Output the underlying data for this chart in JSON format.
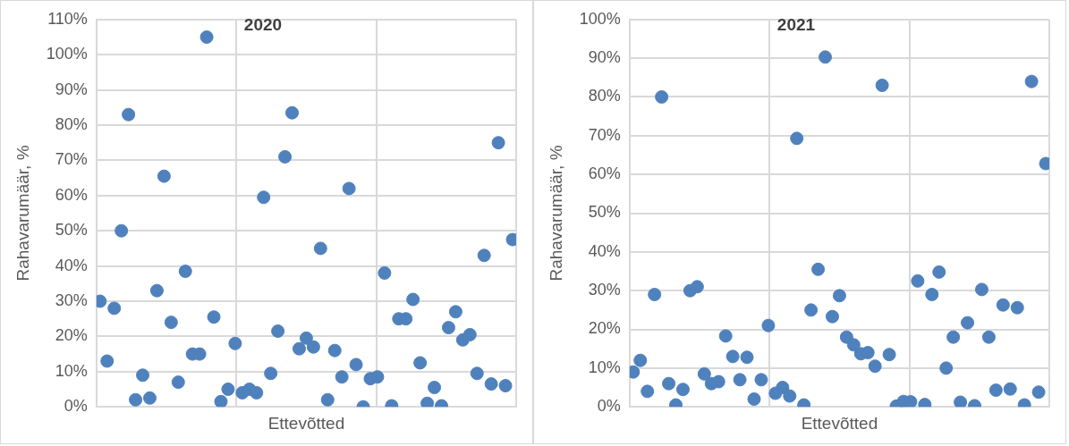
{
  "chart_data": [
    {
      "type": "scatter",
      "title": "2020",
      "xlabel": "Ettevõtted",
      "ylabel": "Rahavarumäär, %",
      "marker": "circle",
      "grid": true,
      "legend": false,
      "tick_labels": "y",
      "categories": [
        null,
        null,
        null,
        null,
        null,
        null,
        null,
        null,
        null,
        null,
        null,
        null,
        null,
        null,
        null,
        null,
        null,
        null,
        null,
        null,
        null,
        null,
        null,
        null,
        null,
        null,
        null,
        null,
        null,
        null,
        null,
        null,
        null,
        null,
        null,
        null,
        null,
        null,
        null,
        null,
        null,
        null,
        null,
        null,
        null,
        null,
        null,
        null,
        null,
        null,
        null,
        null,
        null,
        null,
        null,
        null,
        null,
        null,
        null
      ],
      "ylim": [
        0,
        110
      ],
      "yticks": [
        {
          "value": 0,
          "label": "0%"
        },
        {
          "value": 10,
          "label": "10%"
        },
        {
          "value": 20,
          "label": "20%"
        },
        {
          "value": 30,
          "label": "30%"
        },
        {
          "value": 40,
          "label": "40%"
        },
        {
          "value": 50,
          "label": "50%"
        },
        {
          "value": 60,
          "label": "60%"
        },
        {
          "value": 70,
          "label": "70%"
        },
        {
          "value": 80,
          "label": "80%"
        },
        {
          "value": 90,
          "label": "90%"
        },
        {
          "value": 100,
          "label": "100%"
        },
        {
          "value": 110,
          "label": "110%"
        }
      ],
      "series": [
        {
          "color": "#4f81bd",
          "values": [
            30,
            13,
            28,
            50,
            83,
            2,
            9,
            2.5,
            33,
            65.5,
            24,
            7,
            38.5,
            15,
            15,
            105,
            25.5,
            1.5,
            5,
            18,
            4,
            5,
            4,
            59.5,
            9.5,
            21.5,
            71,
            83.5,
            16.5,
            19.5,
            17,
            45,
            2,
            16,
            8.5,
            62,
            12,
            0,
            8,
            8.5,
            38,
            0.3,
            25,
            25,
            30.5,
            12.5,
            1,
            5.5,
            0.3,
            22.5,
            27,
            19,
            20.5,
            9.5,
            43,
            6.5,
            75,
            6,
            47.5
          ]
        }
      ]
    },
    {
      "type": "scatter",
      "title": "2021",
      "xlabel": "Ettevõtted",
      "ylabel": "Rahavarumäär, %",
      "marker": "circle",
      "grid": true,
      "legend": false,
      "tick_labels": "y",
      "categories": [
        null,
        null,
        null,
        null,
        null,
        null,
        null,
        null,
        null,
        null,
        null,
        null,
        null,
        null,
        null,
        null,
        null,
        null,
        null,
        null,
        null,
        null,
        null,
        null,
        null,
        null,
        null,
        null,
        null,
        null,
        null,
        null,
        null,
        null,
        null,
        null,
        null,
        null,
        null,
        null,
        null,
        null,
        null,
        null,
        null,
        null,
        null,
        null,
        null,
        null,
        null,
        null,
        null,
        null,
        null,
        null,
        null,
        null,
        null
      ],
      "ylim": [
        0,
        100
      ],
      "yticks": [
        {
          "value": 0,
          "label": "0%"
        },
        {
          "value": 10,
          "label": "10%"
        },
        {
          "value": 20,
          "label": "20%"
        },
        {
          "value": 30,
          "label": "30%"
        },
        {
          "value": 40,
          "label": "40%"
        },
        {
          "value": 50,
          "label": "50%"
        },
        {
          "value": 60,
          "label": "60%"
        },
        {
          "value": 70,
          "label": "70%"
        },
        {
          "value": 80,
          "label": "80%"
        },
        {
          "value": 90,
          "label": "90%"
        },
        {
          "value": 100,
          "label": "100%"
        }
      ],
      "series": [
        {
          "color": "#4f81bd",
          "values": [
            9,
            12,
            4,
            29,
            80,
            6,
            0.5,
            4.5,
            30,
            31,
            8.5,
            6,
            6.5,
            18.3,
            13,
            7,
            12.8,
            2,
            7,
            21,
            3.5,
            5,
            2.8,
            69.3,
            0.5,
            25,
            35.5,
            90.3,
            23.3,
            28.7,
            18,
            16,
            13.7,
            14,
            10.5,
            83,
            13.5,
            0.2,
            1.4,
            1.3,
            32.5,
            0.6,
            29,
            34.8,
            10,
            18,
            1.2,
            21.7,
            0.3,
            30.3,
            18,
            4.3,
            26.3,
            4.6,
            25.6,
            0.5,
            84,
            3.8,
            62.8
          ]
        }
      ]
    }
  ]
}
